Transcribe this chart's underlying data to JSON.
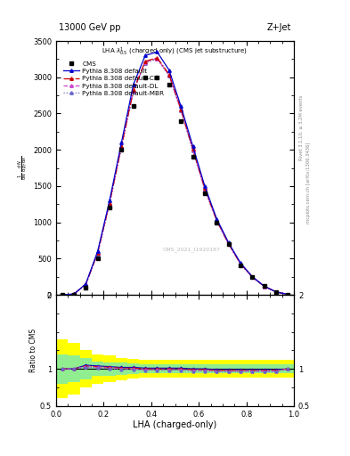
{
  "title_top_left": "13000 GeV pp",
  "title_top_right": "Z+Jet",
  "plot_title": "LHA $\\lambda^{1}_{0.5}$ (charged only) (CMS jet substructure)",
  "xlabel": "LHA (charged-only)",
  "watermark": "CMS_2021_I1920187",
  "right_label_top": "Rivet 3.1.10, ≥ 3.2M events",
  "right_label_bot": "mcplots.cern.ch [arXiv:1306.3436]",
  "x_data": [
    0.025,
    0.075,
    0.125,
    0.175,
    0.225,
    0.275,
    0.325,
    0.375,
    0.425,
    0.475,
    0.525,
    0.575,
    0.625,
    0.675,
    0.725,
    0.775,
    0.825,
    0.875,
    0.925,
    0.975
  ],
  "cms_y": [
    0,
    0,
    100,
    500,
    1200,
    2000,
    2600,
    3000,
    3000,
    2900,
    2400,
    1900,
    1400,
    1000,
    700,
    400,
    250,
    120,
    40,
    5
  ],
  "pythia_default_y": [
    0,
    10,
    150,
    600,
    1300,
    2100,
    2900,
    3300,
    3350,
    3100,
    2600,
    2050,
    1500,
    1050,
    720,
    440,
    250,
    120,
    40,
    5
  ],
  "pythia_cd_y": [
    0,
    10,
    145,
    580,
    1270,
    2050,
    2820,
    3220,
    3270,
    3040,
    2560,
    2010,
    1470,
    1030,
    705,
    430,
    245,
    118,
    39,
    5
  ],
  "pythia_dl_y": [
    0,
    10,
    142,
    575,
    1260,
    2040,
    2810,
    3210,
    3260,
    3030,
    2550,
    2000,
    1460,
    1025,
    700,
    428,
    242,
    116,
    38,
    5
  ],
  "pythia_mbr_y": [
    0,
    10,
    140,
    570,
    1250,
    2030,
    2800,
    3200,
    3250,
    3020,
    2540,
    1990,
    1450,
    1020,
    698,
    426,
    240,
    115,
    38,
    5
  ],
  "ylim_main": [
    0,
    3500
  ],
  "yticks_main": [
    0,
    500,
    1000,
    1500,
    2000,
    2500,
    3000,
    3500
  ],
  "ylim_ratio": [
    0.5,
    2.0
  ],
  "color_default": "#0000cc",
  "color_cd": "#cc0000",
  "color_dl": "#cc44cc",
  "color_mbr": "#6666cc",
  "yellow_top": [
    1.4,
    1.35,
    1.25,
    1.2,
    1.18,
    1.15,
    1.13,
    1.12,
    1.12,
    1.12,
    1.12,
    1.12,
    1.12,
    1.12,
    1.12,
    1.12,
    1.12,
    1.12,
    1.12,
    1.12
  ],
  "yellow_bot": [
    0.6,
    0.65,
    0.75,
    0.8,
    0.82,
    0.85,
    0.87,
    0.88,
    0.88,
    0.88,
    0.88,
    0.88,
    0.88,
    0.88,
    0.88,
    0.88,
    0.88,
    0.88,
    0.88,
    0.88
  ],
  "green_top": [
    1.2,
    1.18,
    1.14,
    1.1,
    1.09,
    1.08,
    1.07,
    1.06,
    1.06,
    1.06,
    1.06,
    1.06,
    1.06,
    1.06,
    1.06,
    1.06,
    1.06,
    1.06,
    1.06,
    1.06
  ],
  "green_bot": [
    0.8,
    0.82,
    0.86,
    0.9,
    0.91,
    0.92,
    0.93,
    0.94,
    0.94,
    0.94,
    0.94,
    0.94,
    0.94,
    0.94,
    0.94,
    0.94,
    0.94,
    0.94,
    0.94,
    0.94
  ],
  "ratio_default_y": [
    1.0,
    1.0,
    1.05,
    1.04,
    1.03,
    1.02,
    1.02,
    1.01,
    1.01,
    1.01,
    1.01,
    1.0,
    1.0,
    0.99,
    0.99,
    0.99,
    0.99,
    0.99,
    0.99,
    1.0
  ],
  "ratio_cd_y": [
    1.0,
    1.0,
    1.04,
    1.03,
    1.02,
    1.01,
    1.01,
    1.0,
    1.0,
    1.0,
    1.0,
    0.99,
    0.99,
    0.98,
    0.98,
    0.98,
    0.98,
    0.98,
    0.98,
    1.0
  ],
  "ratio_dl_y": [
    1.0,
    1.0,
    1.03,
    1.02,
    1.01,
    1.0,
    1.0,
    0.99,
    0.99,
    0.99,
    0.99,
    0.98,
    0.98,
    0.97,
    0.97,
    0.97,
    0.97,
    0.97,
    0.97,
    1.0
  ],
  "ratio_mbr_y": [
    1.0,
    1.0,
    1.02,
    1.01,
    1.0,
    0.99,
    0.99,
    0.98,
    0.98,
    0.98,
    0.98,
    0.97,
    0.97,
    0.96,
    0.96,
    0.96,
    0.96,
    0.96,
    0.96,
    1.0
  ],
  "bg_color": "#ffffff"
}
